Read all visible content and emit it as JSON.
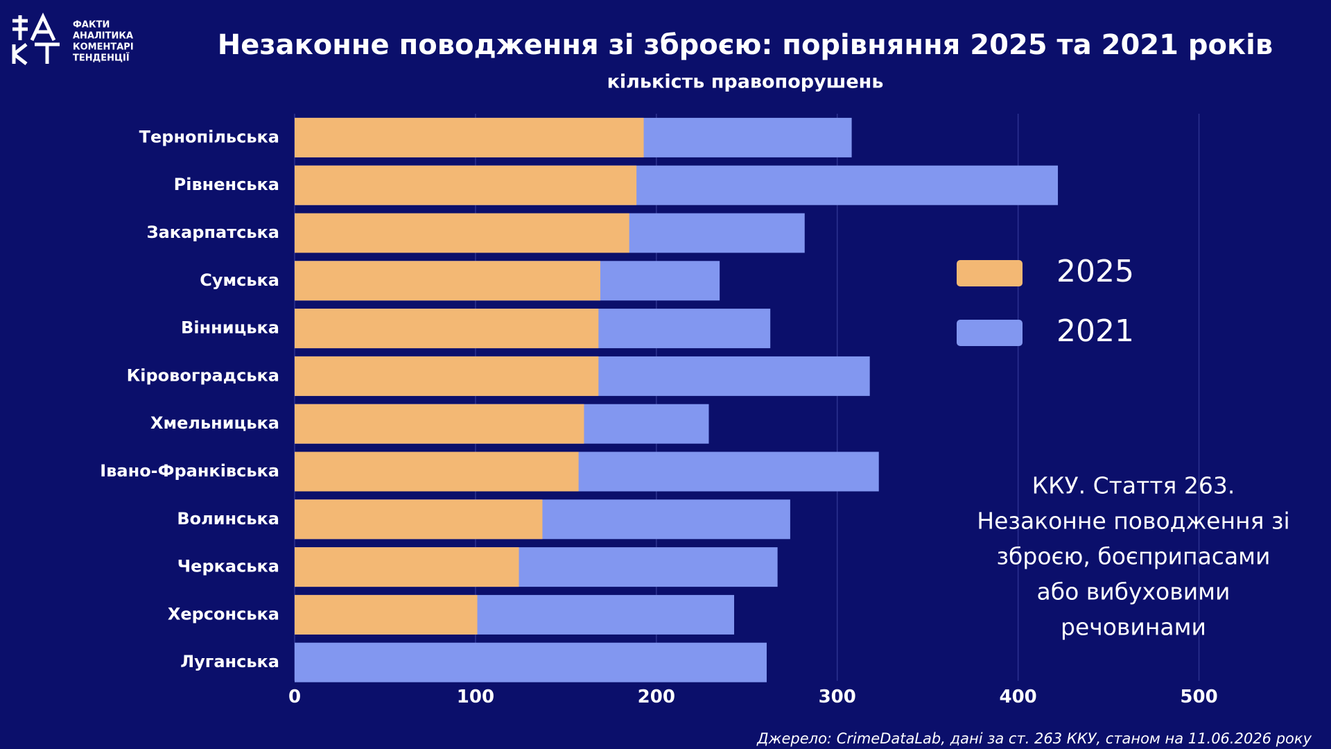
{
  "logo": {
    "lines": [
      "ФАКТИ",
      "АНАЛІТИКА",
      "КОМЕНТАРІ",
      "ТЕНДЕНЦІЇ"
    ]
  },
  "chart_data": {
    "type": "bar",
    "title": "Незаконне поводження зі зброєю: порівняння 2025 та 2021 років",
    "subtitle": "кількість правопорушень",
    "categories": [
      "Тернопільська",
      "Рівненська",
      "Закарпатська",
      "Сумська",
      "Вінницька",
      "Кіровоградська",
      "Хмельницька",
      "Івано-Франківська",
      "Волинська",
      "Черкаська",
      "Херсонська",
      "Луганська"
    ],
    "series": [
      {
        "name": "2021",
        "color": "#8297f0",
        "values": [
          308,
          422,
          282,
          235,
          263,
          318,
          229,
          323,
          274,
          267,
          243,
          261
        ]
      },
      {
        "name": "2025",
        "color": "#f3b874",
        "values": [
          193,
          189,
          185,
          169,
          168,
          168,
          160,
          157,
          137,
          124,
          101,
          0
        ]
      }
    ],
    "legend_order": [
      "2025",
      "2021"
    ],
    "xlim": [
      0,
      550
    ],
    "xticks": [
      0,
      100,
      200,
      300,
      400,
      500
    ],
    "grid": true,
    "annotation": [
      "ККУ. Стаття 263.",
      "Незаконне поводження зі",
      "зброєю, боєприпасами",
      "або вибуховими",
      "речовинами"
    ],
    "source": "Джерело: CrimeDataLab, дані за ст. 263 ККУ, станом на 11.06.2026 року"
  }
}
